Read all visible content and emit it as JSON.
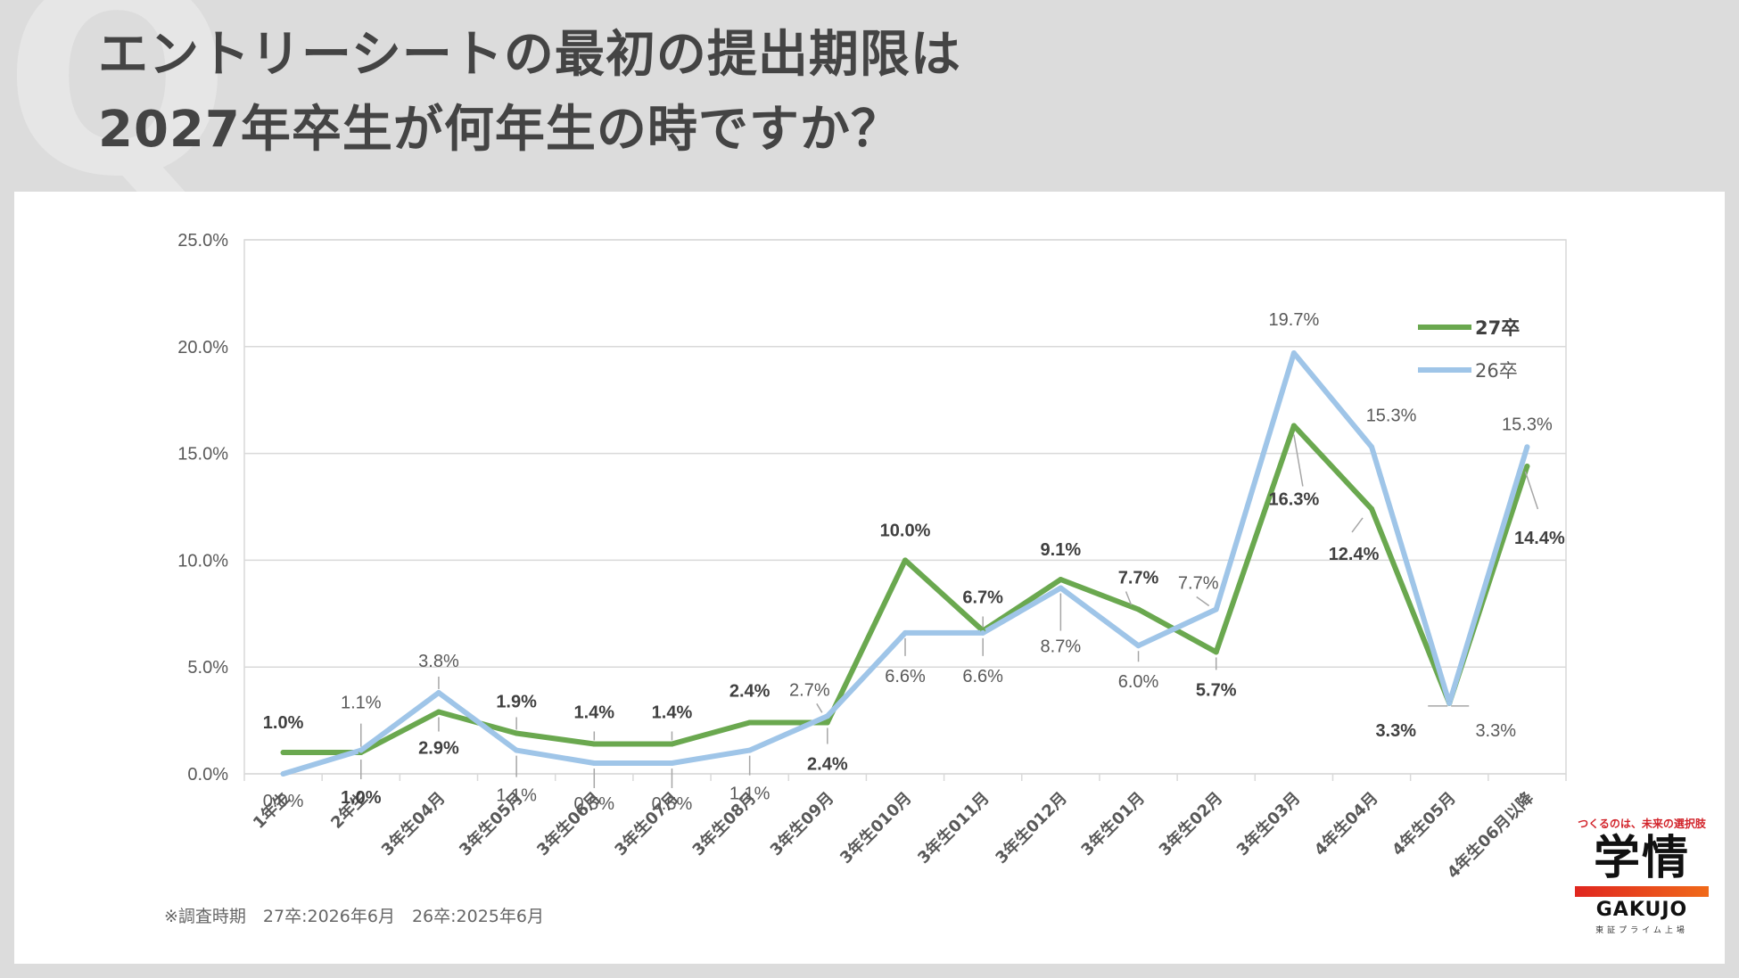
{
  "header": {
    "title_line1": "エントリーシートの最初の提出期限は",
    "title_line2": "2027年卒生が何年生の時ですか？",
    "q_mark": "Q"
  },
  "footnote": "※調査時期　27卒:2026年6月　26卒:2025年6月",
  "logo": {
    "tagline": "つくるのは、未来の選択肢",
    "kanji": "学情",
    "name": "GAKUJO",
    "sub": "東証プライム上場"
  },
  "chart_data": {
    "type": "line",
    "title": "",
    "xlabel": "",
    "ylabel": "",
    "ylim": [
      0,
      25
    ],
    "y_ticks": [
      "0.0%",
      "5.0%",
      "10.0%",
      "15.0%",
      "20.0%",
      "25.0%"
    ],
    "grid": true,
    "legend_position": "top-right",
    "categories": [
      "1年生",
      "2年生",
      "3年生04月",
      "3年生05月",
      "3年生06月",
      "3年生07月",
      "3年生08月",
      "3年生09月",
      "3年生010月",
      "3年生011月",
      "3年生012月",
      "3年生01月",
      "3年生02月",
      "3年生03月",
      "4年生04月",
      "4年生05月",
      "4年生06月以降"
    ],
    "series": [
      {
        "name": "27卒",
        "color": "#6aa84f",
        "values": [
          1.0,
          1.0,
          2.9,
          1.9,
          1.4,
          1.4,
          2.4,
          2.4,
          10.0,
          6.7,
          9.1,
          7.7,
          5.7,
          16.3,
          12.4,
          3.3,
          14.4
        ],
        "labels": [
          "1.0%",
          "1.0%",
          "2.9%",
          "1.9%",
          "1.4%",
          "1.4%",
          "2.4%",
          "2.4%",
          "10.0%",
          "6.7%",
          "9.1%",
          "7.7%",
          "5.7%",
          "16.3%",
          "12.4%",
          "3.3%",
          "14.4%"
        ]
      },
      {
        "name": "26卒",
        "color": "#9fc5e8",
        "values": [
          0.0,
          1.1,
          3.8,
          1.1,
          0.5,
          0.5,
          1.1,
          2.7,
          6.6,
          6.6,
          8.7,
          6.0,
          7.7,
          19.7,
          15.3,
          3.3,
          15.3
        ],
        "labels": [
          "0.0%",
          "1.1%",
          "3.8%",
          "1.1%",
          "0.5%",
          "0.5%",
          "1.1%",
          "2.7%",
          "6.6%",
          "6.6%",
          "8.7%",
          "6.0%",
          "7.7%",
          "19.7%",
          "15.3%",
          "3.3%",
          "15.3%"
        ]
      }
    ]
  }
}
